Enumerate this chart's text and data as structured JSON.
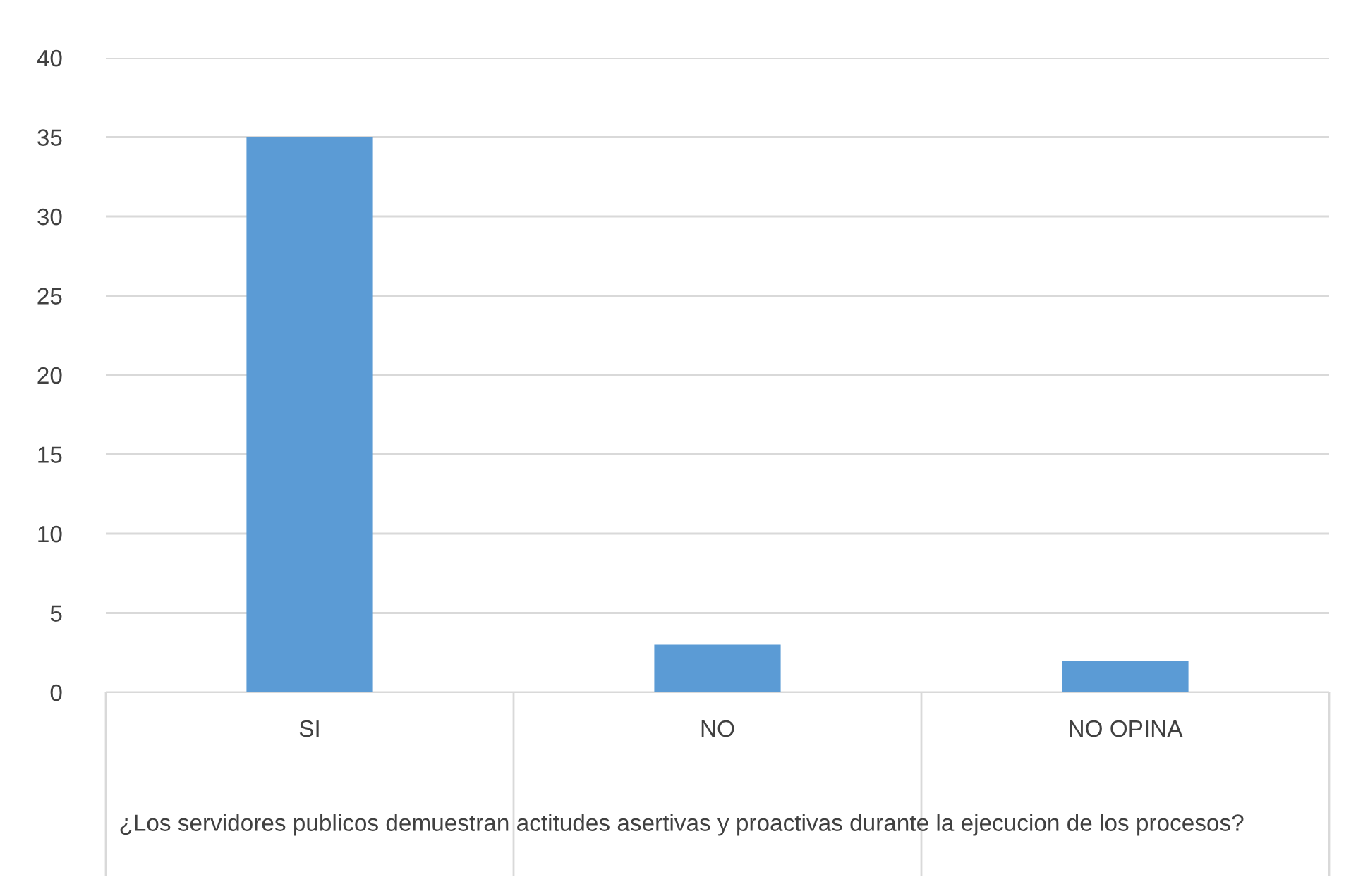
{
  "chart_data": {
    "type": "bar",
    "categories": [
      "SI",
      "NO",
      "NO OPINA"
    ],
    "values": [
      35,
      3,
      2
    ],
    "color": "#5b9bd5",
    "xlabel": "¿Los servidores publicos demuestran actitudes asertivas y proactivas durante la ejecucion de los procesos?",
    "ylim": [
      0,
      40
    ],
    "yticks": [
      0,
      5,
      10,
      15,
      20,
      25,
      30,
      35,
      40
    ],
    "grid": "y",
    "legend": false
  }
}
